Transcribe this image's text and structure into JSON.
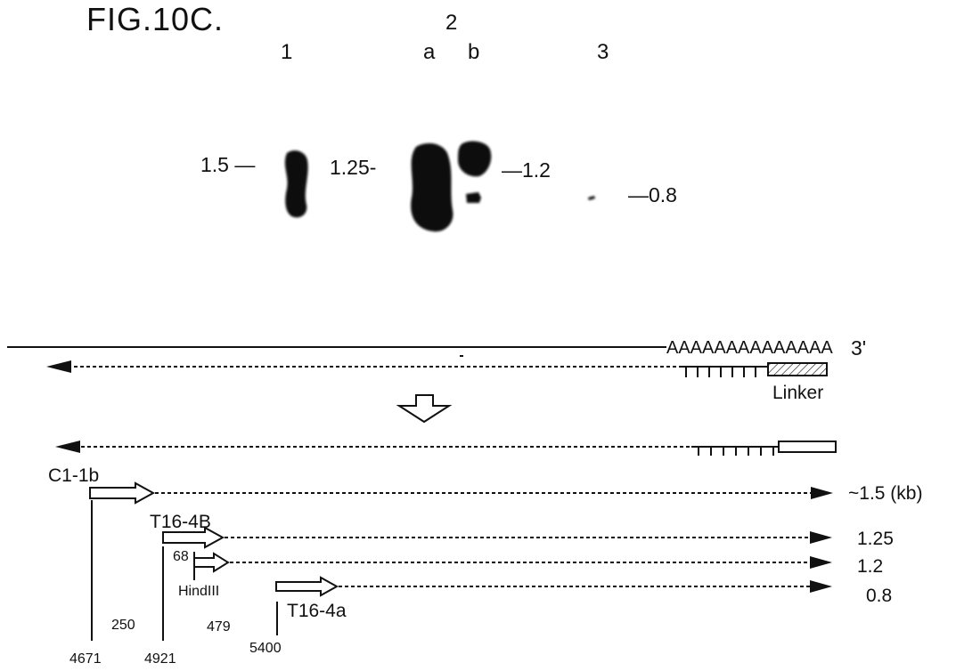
{
  "figure": {
    "title": "FIG.10C."
  },
  "gel": {
    "lanes": [
      {
        "id": "lane-1",
        "label": "1"
      },
      {
        "id": "lane-2",
        "label": "2",
        "sublanes": [
          "a",
          "b"
        ]
      },
      {
        "id": "lane-3",
        "label": "3"
      }
    ],
    "size_markers": [
      {
        "label": "1.5 —",
        "lane": "1"
      },
      {
        "label": "1.25-",
        "lane": "2a"
      },
      {
        "label": "—1.2",
        "lane": "2b"
      },
      {
        "label": "—0.8",
        "lane": "3"
      }
    ]
  },
  "mrna": {
    "polyA": "AAAAAAAAAAAAAA",
    "three_prime": "3'",
    "linker_label": "Linker"
  },
  "products": {
    "primers": {
      "c1": "C1-1b",
      "t16b": "T16-4B",
      "t16a": "T16-4a",
      "sixty_eight": "68",
      "hind": "HindIII"
    },
    "sizes": {
      "s1": "~1.5 (kb)",
      "s2": "1.25",
      "s3": "1.2",
      "s4": "0.8"
    },
    "distances": {
      "d1": "250",
      "d2": "479"
    },
    "positions": {
      "p1": "4671",
      "p2": "4921",
      "p3": "5400"
    }
  }
}
